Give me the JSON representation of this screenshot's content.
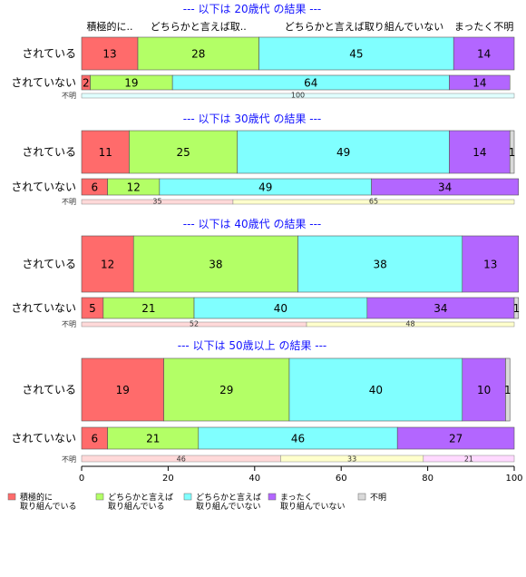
{
  "chart_data": {
    "type": "bar",
    "orientation": "horizontal",
    "stacked": true,
    "xlim": [
      0,
      100
    ],
    "x_ticks": [
      0,
      20,
      40,
      60,
      80,
      100
    ],
    "category_headers": [
      "積極的に..",
      "どちらかと言えば取..",
      "どちらかと言えば取り組んでいない",
      "まったく不明"
    ],
    "legend": [
      {
        "label_line1": "積極的に",
        "label_line2": "取り組んでいる",
        "color": "#ff6b6b"
      },
      {
        "label_line1": "どちらかと言えば",
        "label_line2": "取り組んでいる",
        "color": "#b3ff66"
      },
      {
        "label_line1": "どちらかと言えば",
        "label_line2": "取り組んでいない",
        "color": "#80ffff"
      },
      {
        "label_line1": "まったく",
        "label_line2": "取り組んでいない",
        "color": "#b366ff"
      },
      {
        "label_line1": "不明",
        "label_line2": "",
        "color": "#d9d9d9"
      }
    ],
    "fumei_colors": [
      "#ffd9d9",
      "#ffffcc",
      "#ffd9ff"
    ],
    "fumei_label": "不明",
    "groups": [
      {
        "title": "--- 以下は 20歳代 の結果 ---",
        "rows": [
          {
            "label": "されている",
            "values": [
              13,
              28,
              45,
              14,
              0
            ],
            "labels": [
              "13",
              "28",
              "45",
              "14",
              ""
            ]
          },
          {
            "label": "されていない",
            "values": [
              2,
              19,
              64,
              14,
              0
            ],
            "labels": [
              "2",
              "19",
              "64",
              "14",
              ""
            ]
          }
        ],
        "fumei": [
          100
        ]
      },
      {
        "title": "--- 以下は 30歳代 の結果 ---",
        "rows": [
          {
            "label": "されている",
            "values": [
              11,
              25,
              49,
              14,
              1
            ],
            "labels": [
              "11",
              "25",
              "49",
              "14",
              "1"
            ]
          },
          {
            "label": "されていない",
            "values": [
              6,
              12,
              49,
              34,
              0
            ],
            "labels": [
              "6",
              "12",
              "49",
              "34",
              ""
            ]
          }
        ],
        "fumei": [
          35,
          65
        ]
      },
      {
        "title": "--- 以下は 40歳代 の結果 ---",
        "rows": [
          {
            "label": "されている",
            "values": [
              12,
              38,
              38,
              13,
              0
            ],
            "labels": [
              "12",
              "38",
              "38",
              "13",
              ""
            ]
          },
          {
            "label": "されていない",
            "values": [
              5,
              21,
              40,
              34,
              1
            ],
            "labels": [
              "5",
              "21",
              "40",
              "34",
              "1"
            ]
          }
        ],
        "fumei": [
          52,
          48
        ]
      },
      {
        "title": "--- 以下は 50歳以上 の結果 ---",
        "rows": [
          {
            "label": "されている",
            "values": [
              19,
              29,
              40,
              10,
              1
            ],
            "labels": [
              "19",
              "29",
              "40",
              "10",
              "1"
            ]
          },
          {
            "label": "されていない",
            "values": [
              6,
              21,
              46,
              27,
              0
            ],
            "labels": [
              "6",
              "21",
              "46",
              "27",
              ""
            ]
          }
        ],
        "fumei": [
          46,
          33,
          21
        ]
      }
    ]
  }
}
